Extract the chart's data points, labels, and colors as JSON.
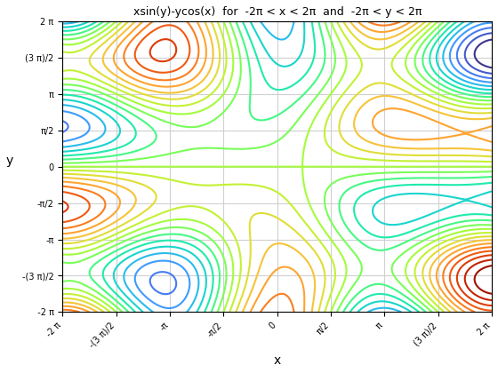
{
  "x_range": [
    -6.283185307,
    6.283185307
  ],
  "y_range": [
    -6.283185307,
    6.283185307
  ],
  "n_points": 500,
  "n_levels": 20,
  "title": "xsin(y)-ycos(x)  for  -2π < x < 2π  and  -2π < y < 2π",
  "xlabel": "x",
  "ylabel": "y",
  "colormap": "plasma",
  "background_color": "#ffffff",
  "grid_color": "#d0d0d0",
  "tick_values": [
    -6.283185307,
    -4.71238898,
    -3.141592654,
    -1.570796327,
    0,
    1.570796327,
    3.141592654,
    4.71238898,
    6.283185307
  ],
  "x_tick_labels": [
    "-2 π",
    "-(3 π)/2",
    "-π",
    "-π/2",
    "0",
    "π/2",
    "π",
    "(3 π)/2",
    "2 π"
  ],
  "y_tick_labels": [
    "  -2 π",
    "-(3 π)/2",
    "-π",
    "-π/2",
    "0",
    "π/2",
    "π",
    "(3 π)/2",
    "2 π"
  ]
}
